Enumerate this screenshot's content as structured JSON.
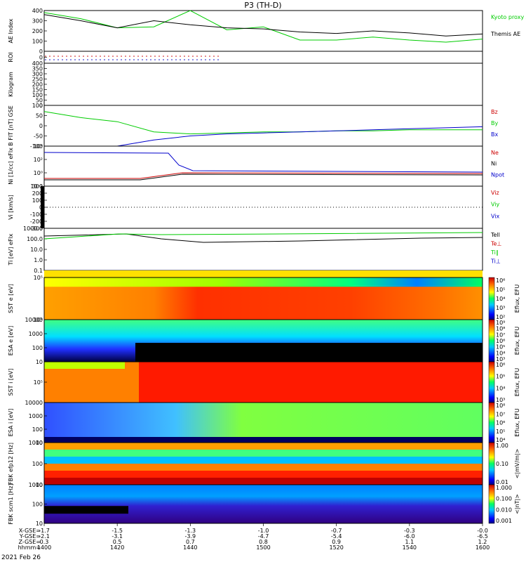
{
  "title": "P3 (TH-D)",
  "date_label": "2021 Feb 26",
  "time_axis": {
    "row_labels": [
      "X-GSE",
      "Y-GSE",
      "Z-GSE",
      "hhmm"
    ],
    "ticks": [
      {
        "time": "1400",
        "x": "-1.7",
        "y": "-2.1",
        "z": "0.3"
      },
      {
        "time": "1420",
        "x": "-1.5",
        "y": "-3.1",
        "z": "0.5"
      },
      {
        "time": "1440",
        "x": "-1.3",
        "y": "-3.9",
        "z": "0.7"
      },
      {
        "time": "1500",
        "x": "-1.0",
        "y": "-4.7",
        "z": "0.8"
      },
      {
        "time": "1520",
        "x": "-0.7",
        "y": "-5.4",
        "z": "0.9"
      },
      {
        "time": "1540",
        "x": "-0.3",
        "y": "-6.0",
        "z": "1.1"
      },
      {
        "time": "1600",
        "x": "-0.0",
        "y": "-6.5",
        "z": "1.2"
      }
    ]
  },
  "colors": {
    "black": "#000000",
    "green": "#00cc00",
    "red": "#cc0000",
    "blue": "#0000cc"
  },
  "chart_data": [
    {
      "type": "line",
      "title": "",
      "ylabel": "AE Index",
      "ylim": [
        0,
        400
      ],
      "yticks": [
        "0",
        "100",
        "200",
        "300",
        "400"
      ],
      "x": [
        "1400",
        "1410",
        "1420",
        "1430",
        "1440",
        "1450",
        "1500",
        "1510",
        "1520",
        "1530",
        "1540",
        "1550",
        "1600"
      ],
      "series": [
        {
          "name": "Kyoto proxy AE",
          "color": "green",
          "values": [
            380,
            320,
            230,
            240,
            400,
            210,
            240,
            110,
            110,
            140,
            110,
            90,
            120
          ]
        },
        {
          "name": "Themis AE",
          "color": "black",
          "values": [
            360,
            300,
            230,
            300,
            260,
            230,
            220,
            190,
            175,
            200,
            180,
            150,
            170
          ]
        }
      ]
    },
    {
      "type": "scatter",
      "ylabel": "ROI",
      "yticks": [
        "0"
      ],
      "series": []
    },
    {
      "type": "line",
      "ylabel": "Kilogram",
      "yticks": [
        "0",
        "50",
        "100",
        "150",
        "200",
        "250",
        "300",
        "350",
        "400"
      ],
      "series": []
    },
    {
      "type": "line",
      "ylabel": "B FIT [nT] GSE",
      "ylim": [
        -100,
        100
      ],
      "yticks": [
        "-100",
        "-50",
        "0",
        "50",
        "100"
      ],
      "series": [
        {
          "name": "Bz",
          "color": "red",
          "values": []
        },
        {
          "name": "By",
          "color": "green",
          "values": [
            70,
            40,
            20,
            -30,
            -40,
            -35,
            -30,
            -30,
            -25,
            -25,
            -20,
            -20,
            -20
          ]
        },
        {
          "name": "Bx",
          "color": "blue",
          "values": [
            null,
            null,
            -100,
            -70,
            -50,
            -40,
            -35,
            -30,
            -25,
            -20,
            -15,
            -10,
            -5
          ]
        }
      ]
    },
    {
      "type": "line",
      "ylabel": "Ni [1/cc] eFlx",
      "yticks": [
        "10⁻²",
        "10⁰",
        "10²",
        "10⁴"
      ],
      "series": [
        {
          "name": "Ne",
          "color": "red"
        },
        {
          "name": "Ni",
          "color": "black"
        },
        {
          "name": "Npot",
          "color": "blue"
        }
      ]
    },
    {
      "type": "line",
      "ylabel": "Vi [km/s]",
      "ylim": [
        -300,
        300
      ],
      "yticks": [
        "-300",
        "-200",
        "-100",
        "0",
        "100",
        "200",
        "300"
      ],
      "series": [
        {
          "name": "Viz",
          "color": "red"
        },
        {
          "name": "Viy",
          "color": "green"
        },
        {
          "name": "Vix",
          "color": "blue"
        }
      ]
    },
    {
      "type": "line",
      "ylabel": "Ti [eV] eFlx",
      "yticks": [
        "0.1",
        "1.0",
        "10.0",
        "100.0",
        "1000.0"
      ],
      "series": [
        {
          "name": "Tell",
          "color": "black"
        },
        {
          "name": "Te⊥",
          "color": "red"
        },
        {
          "name": "Ti∥",
          "color": "green"
        },
        {
          "name": "Ti⊥",
          "color": "blue"
        }
      ]
    },
    {
      "type": "heatmap",
      "ylabel": "SST e [eV]",
      "yticks": [
        "10⁴",
        "10⁵"
      ],
      "colorbar": {
        "label": "Eflux, EFU",
        "ticks": [
          "10²",
          "10³",
          "10⁴",
          "10⁵",
          "10⁶"
        ]
      }
    },
    {
      "type": "heatmap",
      "ylabel": "ESA e [eV]",
      "yticks": [
        "10",
        "100",
        "1000",
        "10000"
      ],
      "colorbar": {
        "label": "Eflux, EFU",
        "ticks": [
          "10³",
          "10⁴",
          "10⁵",
          "10⁶",
          "10⁷",
          "10⁸",
          "10⁹"
        ]
      }
    },
    {
      "type": "heatmap",
      "ylabel": "SST i [eV]",
      "yticks": [
        "10⁵"
      ],
      "colorbar": {
        "label": "Eflux, EFU",
        "ticks": [
          "10³",
          "10⁴",
          "10⁵",
          "10⁶"
        ]
      }
    },
    {
      "type": "heatmap",
      "ylabel": "ESA i [eV]",
      "yticks": [
        "10",
        "100",
        "1000",
        "10000"
      ],
      "colorbar": {
        "label": "Eflux, EFU",
        "ticks": [
          "10⁴",
          "10⁵",
          "10⁶",
          "10⁷",
          "10⁸"
        ]
      }
    },
    {
      "type": "heatmap",
      "ylabel": "FBK efp12 [Hz]",
      "yticks": [
        "10",
        "100",
        "1000"
      ],
      "colorbar": {
        "label": "<|mV/m|>",
        "ticks": [
          "0.01",
          "0.10",
          "1.00"
        ]
      }
    },
    {
      "type": "heatmap",
      "ylabel": "FBK scm1 [Hz]",
      "yticks": [
        "10",
        "100",
        "1000"
      ],
      "colorbar": {
        "label": "<|nT|>",
        "ticks": [
          "0.001",
          "0.010",
          "0.100",
          "1.000"
        ]
      }
    }
  ]
}
